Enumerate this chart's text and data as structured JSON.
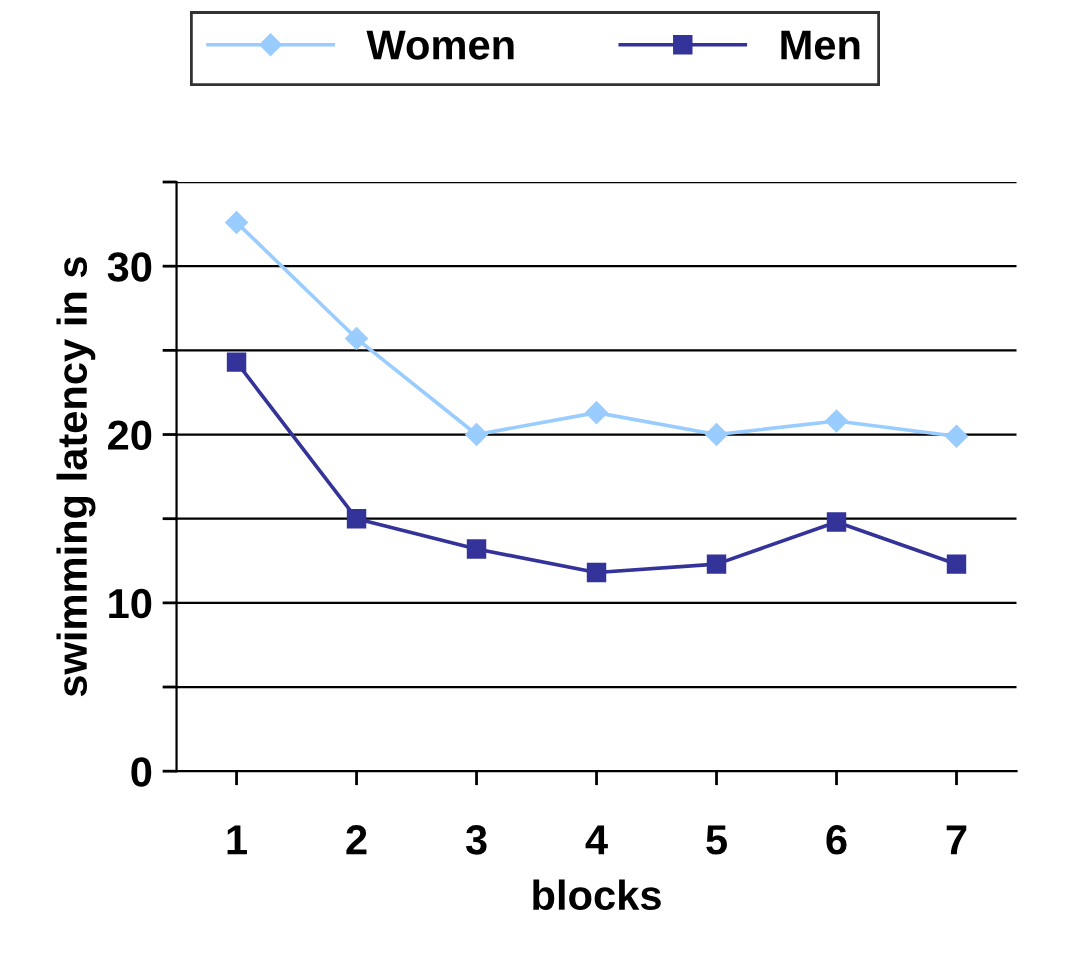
{
  "chart_data": {
    "type": "line",
    "xlabel": "blocks",
    "ylabel": "swimming latency in s",
    "categories": [
      "1",
      "2",
      "3",
      "4",
      "5",
      "6",
      "7"
    ],
    "series": [
      {
        "name": "Women",
        "color": "#99ccff",
        "marker": "diamond",
        "values": [
          32.6,
          25.7,
          20.0,
          21.3,
          20.0,
          20.8,
          19.9
        ]
      },
      {
        "name": "Men",
        "color": "#333399",
        "marker": "square",
        "values": [
          24.3,
          15.0,
          13.2,
          11.8,
          12.3,
          14.8,
          12.3
        ]
      }
    ],
    "ylim": [
      0,
      35
    ],
    "yticks": [
      0,
      {
        "value": 5,
        "label": null
      },
      10,
      {
        "value": 15,
        "label": null
      },
      20,
      {
        "value": 25,
        "label": null
      },
      30,
      {
        "value": 35,
        "label": null
      }
    ],
    "grid": "y",
    "legend": "top",
    "line_style": "solid"
  }
}
